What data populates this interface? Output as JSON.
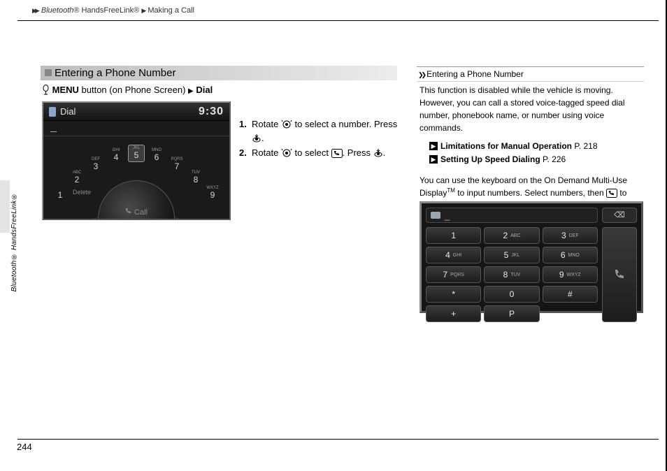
{
  "breadcrumb": {
    "level1": "Bluetooth",
    "level1_suffix": "® HandsFreeLink®",
    "level2": "Making a Call"
  },
  "section": {
    "title": "Entering a Phone Number"
  },
  "nav": {
    "menu_label": "MENU",
    "menu_context": " button (on Phone Screen) ",
    "dial_label": "Dial"
  },
  "dial_screen": {
    "title": "Dial",
    "clock": "9:30",
    "entry": "_",
    "numbers": [
      {
        "n": "1",
        "sub": ""
      },
      {
        "n": "2",
        "sub": "ABC"
      },
      {
        "n": "3",
        "sub": "DEF"
      },
      {
        "n": "4",
        "sub": "GHI"
      },
      {
        "n": "5",
        "sub": "JKL"
      },
      {
        "n": "6",
        "sub": "MNO"
      },
      {
        "n": "7",
        "sub": "PQRS"
      },
      {
        "n": "8",
        "sub": "TUV"
      },
      {
        "n": "9",
        "sub": "WXYZ"
      }
    ],
    "delete_label": "Delete",
    "call_label": "Call"
  },
  "steps": {
    "s1_a": "Rotate ",
    "s1_b": " to select a number. Press ",
    "s1_c": ".",
    "s2_a": "Rotate ",
    "s2_b": " to select ",
    "s2_c": ". Press ",
    "s2_d": "."
  },
  "sidebar": {
    "text": "Bluetooth® HandsFreeLink®"
  },
  "right": {
    "heading": "Entering a Phone Number",
    "p1": "This function is disabled while the vehicle is moving. However, you can call a stored voice-tagged speed dial number, phonebook name, or number using voice commands.",
    "xref1_label": "Limitations for Manual Operation",
    "xref1_page": " P. 218",
    "xref2_label": "Setting Up Speed Dialing",
    "xref2_page": " P. 226",
    "p2_a": "You can use the keyboard on the On Demand Multi-Use Display",
    "p2_tm": "TM",
    "p2_b": " to input numbers. Select numbers, then ",
    "p2_c": " to start dialing."
  },
  "keypad": {
    "display": "_",
    "backspace": "⌫",
    "keys": [
      {
        "n": "1",
        "sub": ""
      },
      {
        "n": "2",
        "sub": "ABC"
      },
      {
        "n": "3",
        "sub": "DEF"
      },
      {
        "n": "4",
        "sub": "GHI"
      },
      {
        "n": "5",
        "sub": "JKL"
      },
      {
        "n": "6",
        "sub": "MNO"
      },
      {
        "n": "7",
        "sub": "PQRS"
      },
      {
        "n": "8",
        "sub": "TUV"
      },
      {
        "n": "9",
        "sub": "WXYZ"
      },
      {
        "n": "*",
        "sub": ""
      },
      {
        "n": "0",
        "sub": ""
      },
      {
        "n": "#",
        "sub": ""
      },
      {
        "n": "+",
        "sub": ""
      },
      {
        "n": "P",
        "sub": ""
      },
      {
        "n": "",
        "sub": ""
      }
    ]
  },
  "page_number": "244"
}
